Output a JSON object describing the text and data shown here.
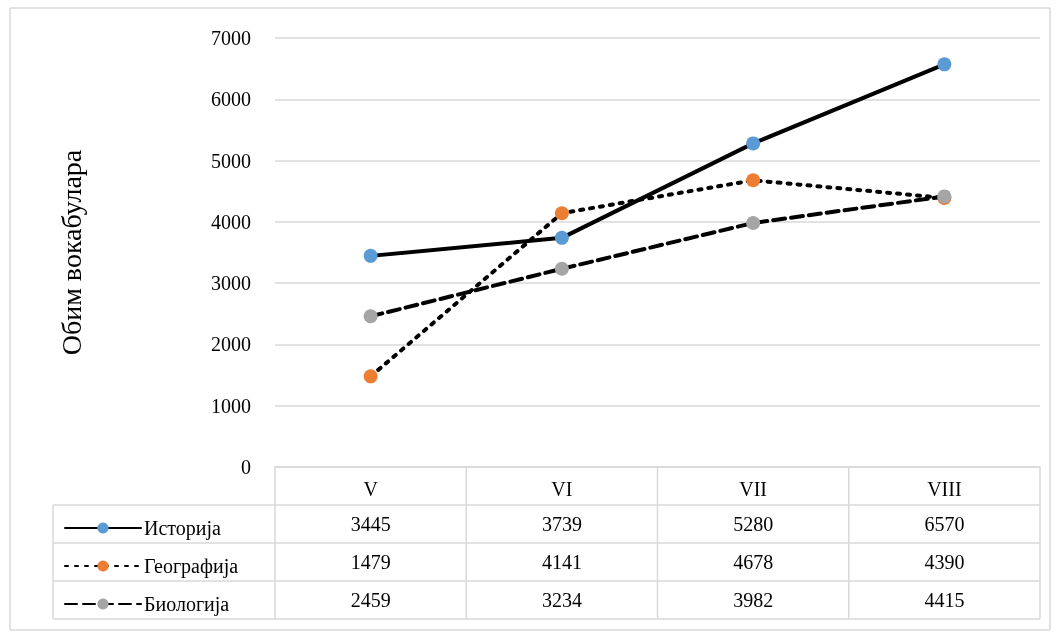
{
  "chart_data": {
    "type": "line",
    "ylabel": "Обим вокабулара",
    "categories": [
      "V",
      "VI",
      "VII",
      "VIII"
    ],
    "series": [
      {
        "name": "Историја",
        "color": "#5b9bd5",
        "line_style": "solid",
        "values": [
          3445,
          3739,
          5280,
          6570
        ]
      },
      {
        "name": "Географија",
        "color": "#ed7d31",
        "line_style": "dotted",
        "values": [
          1479,
          4141,
          4678,
          4390
        ]
      },
      {
        "name": "Биологија",
        "color": "#a5a5a5",
        "line_style": "dashed",
        "values": [
          2459,
          3234,
          3982,
          4415
        ]
      }
    ],
    "ylim": [
      0,
      7000
    ],
    "yticks": [
      0,
      1000,
      2000,
      3000,
      4000,
      5000,
      6000,
      7000
    ],
    "grid": "y",
    "legend": "bottom",
    "marker": "circle",
    "data_labels": true
  }
}
